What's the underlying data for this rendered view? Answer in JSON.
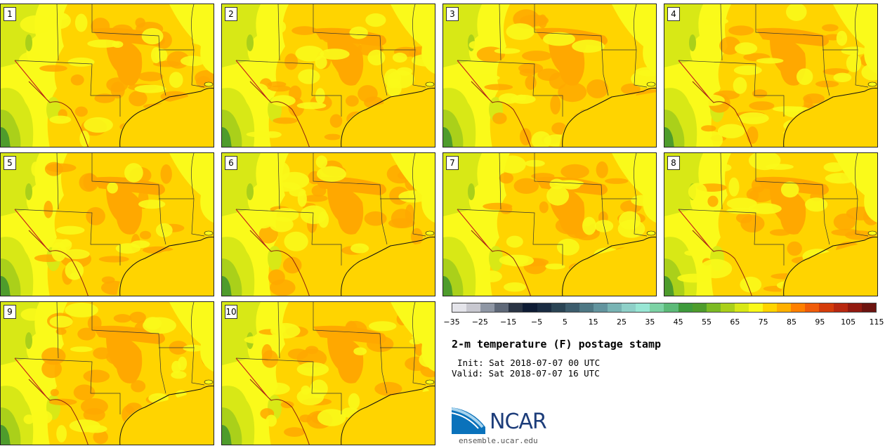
{
  "title": "2-m temperature (F) postage stamp",
  "init_text": "Init: Sat 2018-07-07 00 UTC",
  "valid_text": "Valid: Sat 2018-07-07 16 UTC",
  "logo_name": "NCAR",
  "site": "ensemble.ucar.edu",
  "members": [
    "1",
    "2",
    "3",
    "4",
    "5",
    "6",
    "7",
    "8",
    "9",
    "10"
  ],
  "colorbar": {
    "tick_labels": [
      "−35",
      "−25",
      "−15",
      "−5",
      "5",
      "15",
      "25",
      "35",
      "45",
      "55",
      "65",
      "75",
      "85",
      "95",
      "105",
      "115"
    ],
    "colors": [
      "#e4e4ea",
      "#c8c8d0",
      "#8e96a4",
      "#5e6878",
      "#2a3444",
      "#0e1c34",
      "#1a2c42",
      "#2a4454",
      "#3c5c6c",
      "#4e7884",
      "#62949e",
      "#78b4b4",
      "#8ed0c8",
      "#98e6d4",
      "#7cd2a4",
      "#5cba78",
      "#3e9a3c",
      "#4e9c2c",
      "#7cba24",
      "#aad01a",
      "#d8e816",
      "#fafa1a",
      "#ffd400",
      "#ffb000",
      "#ff8000",
      "#f05c0a",
      "#d43c0a",
      "#b82810",
      "#921a10",
      "#6c1410"
    ]
  },
  "map_colors": {
    "base": "#ffd400",
    "warm": "#ffa800",
    "hot": "#f07800",
    "cool": "#fafa1a",
    "green": "#d8e816",
    "deep_green": "#aad01a",
    "forest": "#4e9c2c",
    "water": "#ffffff",
    "border": "#333333"
  }
}
